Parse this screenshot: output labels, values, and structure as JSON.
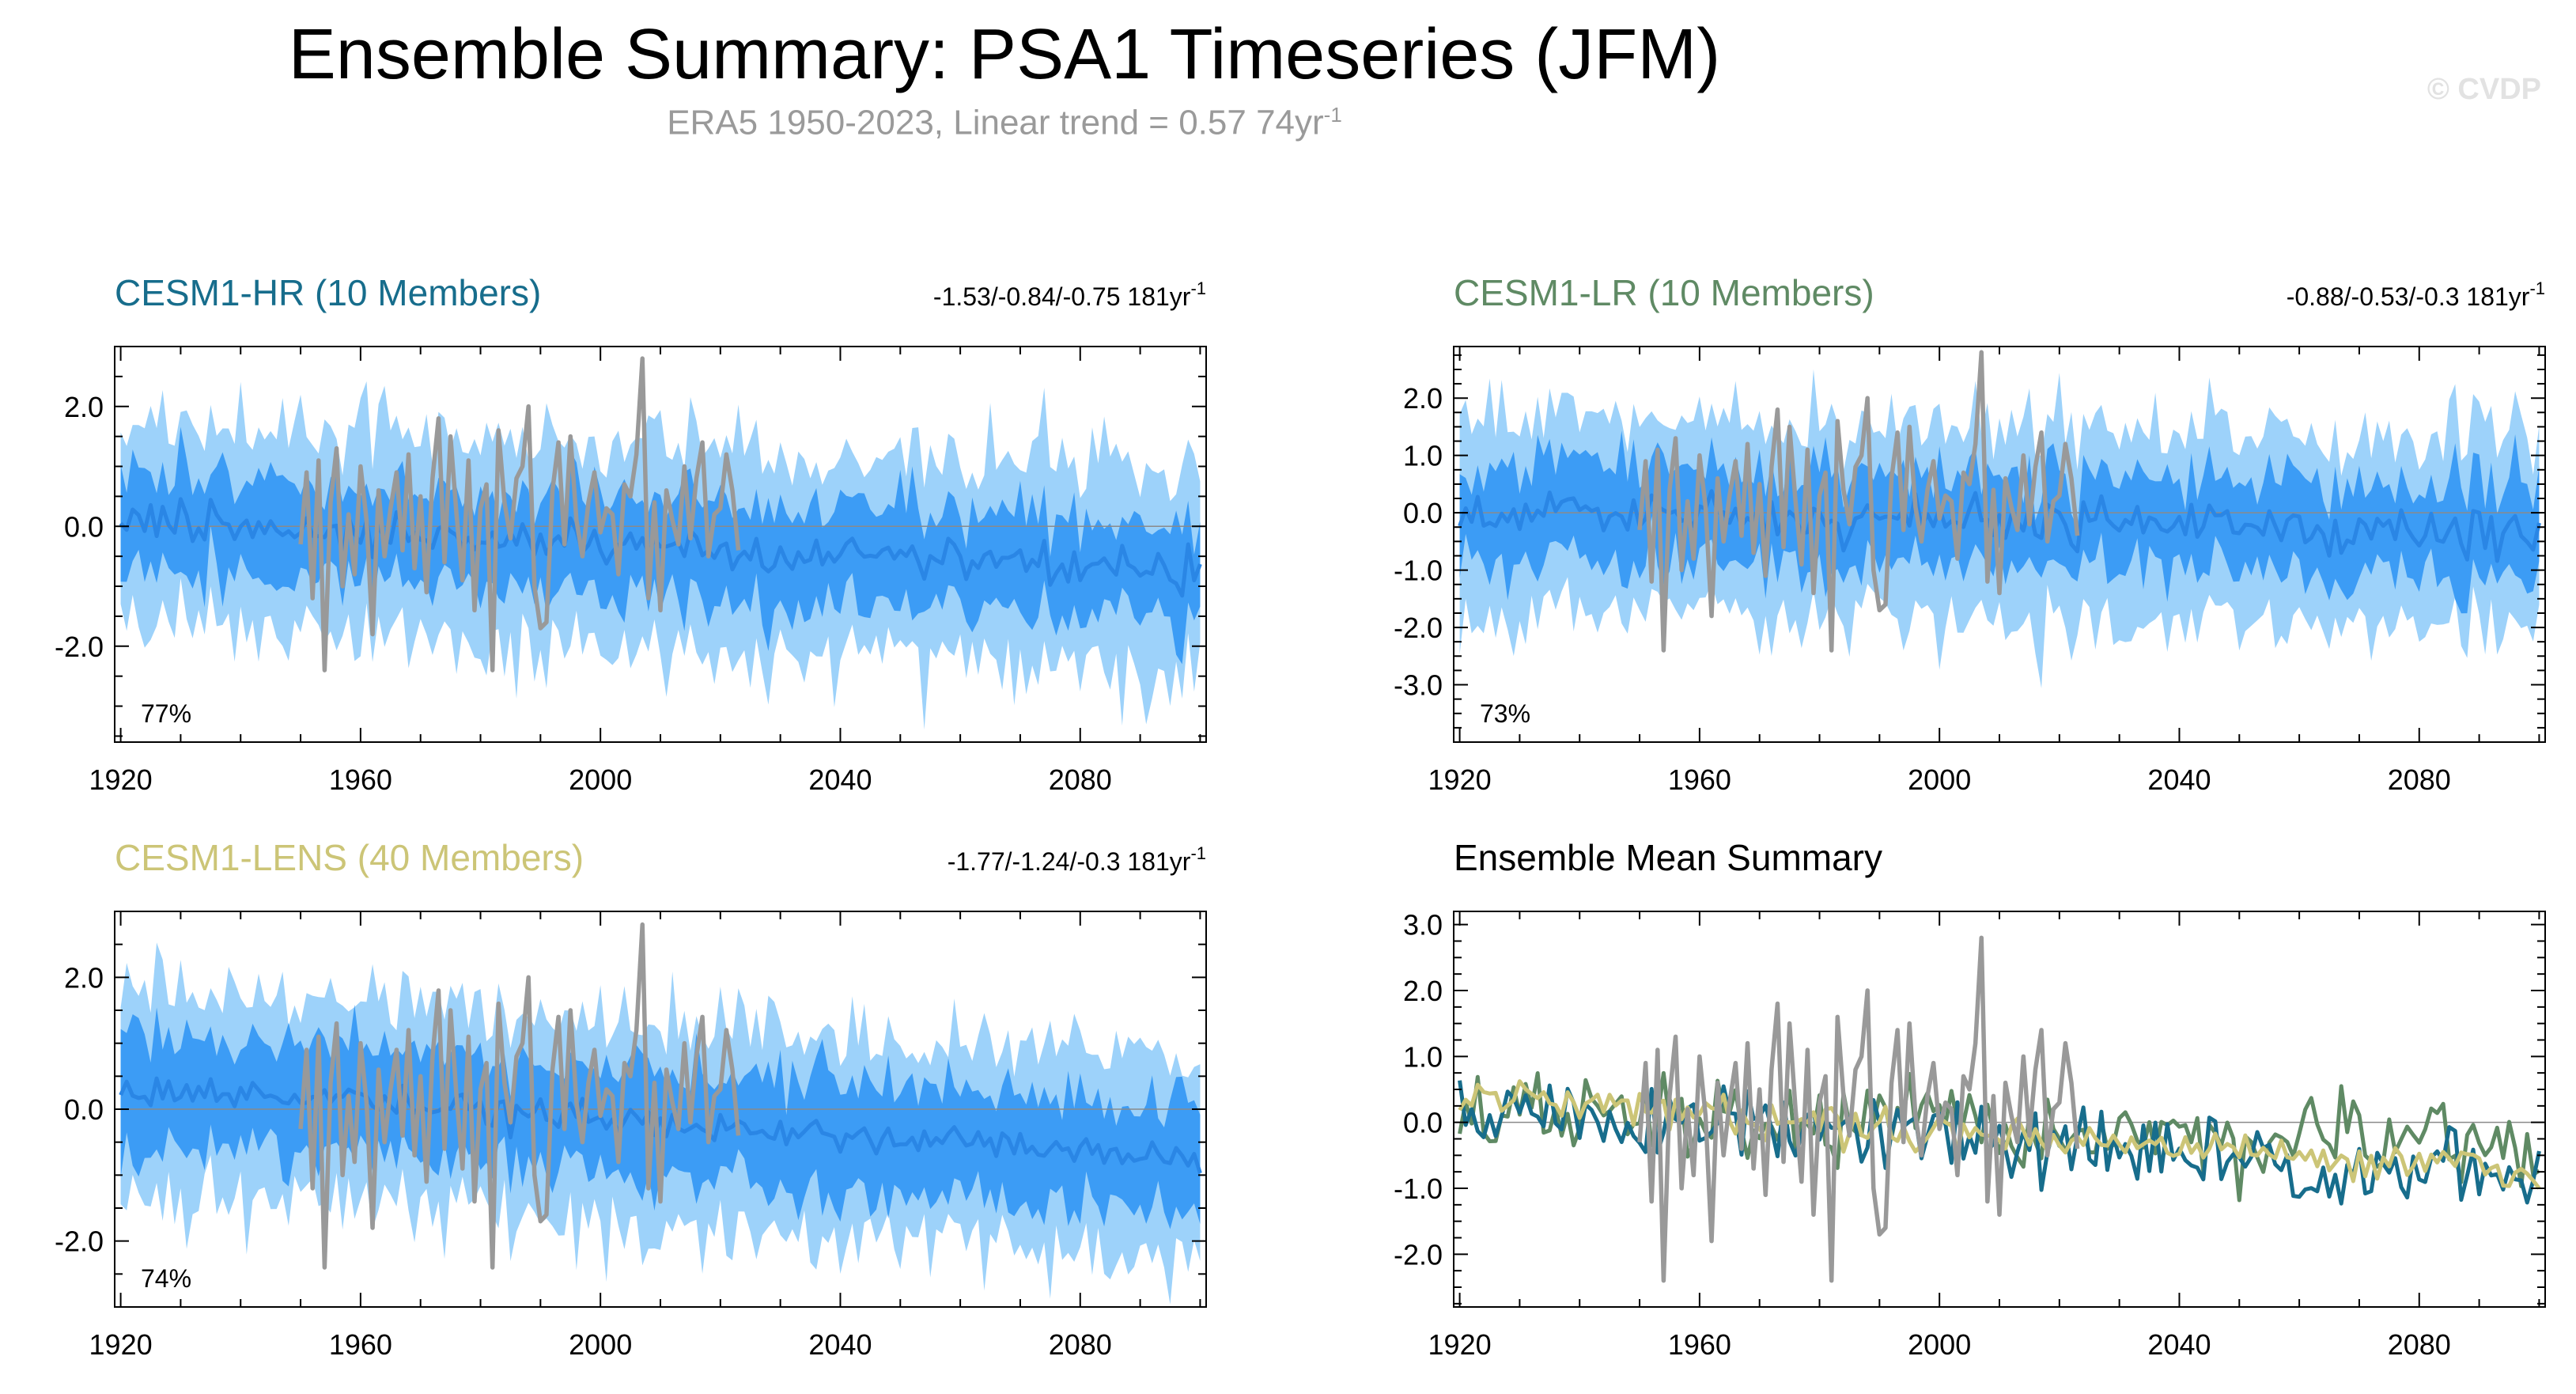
{
  "title": "Ensemble Summary: PSA1 Timeseries (JFM)",
  "subtitle": {
    "text": "ERA5 1950-2023, Linear trend = 0.57 74yr",
    "sup": "-1"
  },
  "watermark": "© CVDP",
  "colors": {
    "hr": "#176d8c",
    "lr": "#5f8a64",
    "lens": "#ccc577",
    "obs": "#999999",
    "band_outer": "#9dd2fa",
    "band_inner": "#3c9cf5",
    "ens_mean": "#2a86e5"
  },
  "chart_data": [
    {
      "id": "hr",
      "type": "line",
      "title": "CESM1-HR (10 Members)",
      "trend": "-1.53/-0.84/-0.75 181yr",
      "trend_sup": "-1",
      "percent": "77%",
      "xlim": [
        1919,
        2101
      ],
      "ylim": [
        -3.6,
        3.0
      ],
      "xticks": [
        1920,
        1960,
        2000,
        2040,
        2080
      ],
      "yticks": [
        2.0,
        0.0,
        -2.0
      ],
      "ytick_labels": [
        "2.0",
        "0.0",
        "-2.0"
      ],
      "y_minor": 0.5,
      "mean_start": 0.1,
      "mean_end": -0.8,
      "inner_half": 0.6,
      "outer_half": 1.3,
      "member_noise": 0.5,
      "seed": 11
    },
    {
      "id": "lr",
      "type": "line",
      "title": "CESM1-LR (10 Members)",
      "trend": "-0.88/-0.53/-0.3 181yr",
      "trend_sup": "-1",
      "percent": "73%",
      "xlim": [
        1919,
        2101
      ],
      "ylim": [
        -4.0,
        2.9
      ],
      "xticks": [
        1920,
        1960,
        2000,
        2040,
        2080
      ],
      "yticks": [
        2.0,
        1.0,
        0.0,
        -1.0,
        -2.0,
        -3.0
      ],
      "ytick_labels": [
        "2.0",
        "1.0",
        "0.0",
        "-1.0",
        "-2.0",
        "-3.0"
      ],
      "y_minor": 0.25,
      "mean_start": 0.0,
      "mean_end": -0.35,
      "inner_half": 0.6,
      "outer_half": 1.3,
      "member_noise": 0.6,
      "seed": 23
    },
    {
      "id": "lens",
      "type": "line",
      "title": "CESM1-LENS (40 Members)",
      "trend": "-1.77/-1.24/-0.3 181yr",
      "trend_sup": "-1",
      "percent": "74%",
      "xlim": [
        1919,
        2101
      ],
      "ylim": [
        -3.0,
        3.0
      ],
      "xticks": [
        1920,
        1960,
        2000,
        2040,
        2080
      ],
      "yticks": [
        2.0,
        0.0,
        -2.0
      ],
      "ytick_labels": [
        "2.0",
        "0.0",
        "-2.0"
      ],
      "y_minor": 0.5,
      "mean_start": 0.35,
      "mean_end": -0.75,
      "inner_half": 0.6,
      "outer_half": 1.15,
      "member_noise": 0.35,
      "seed": 37
    },
    {
      "id": "summary",
      "type": "line",
      "title": "Ensemble Mean Summary",
      "xlim": [
        1919,
        2101
      ],
      "ylim": [
        -2.8,
        3.2
      ],
      "xticks": [
        1920,
        1960,
        2000,
        2040,
        2080
      ],
      "yticks": [
        3.0,
        2.0,
        1.0,
        0.0,
        -1.0,
        -2.0
      ],
      "ytick_labels": [
        "3.0",
        "2.0",
        "1.0",
        "0.0",
        "-1.0",
        "-2.0"
      ],
      "y_minor": 0.25,
      "series": [
        {
          "name": "CESM1-HR",
          "start": 0.2,
          "end": -0.85,
          "noise": 0.32,
          "seed": 51
        },
        {
          "name": "CESM1-LR",
          "start": 0.15,
          "end": -0.4,
          "noise": 0.32,
          "seed": 67
        },
        {
          "name": "CESM1-LENS",
          "start": 0.4,
          "end": -0.75,
          "noise": 0.14,
          "seed": 79
        }
      ]
    }
  ],
  "observations": {
    "name": "ERA5",
    "years": [
      1950,
      2023
    ],
    "values": [
      -0.3,
      0.9,
      -1.2,
      1.1,
      -2.4,
      0.4,
      1.3,
      -1.0,
      0.2,
      -0.8,
      1.0,
      0.1,
      -1.8,
      0.6,
      -0.5,
      0.3,
      0.9,
      -0.4,
      1.2,
      -0.7,
      0.5,
      -1.1,
      0.8,
      1.8,
      -0.6,
      1.5,
      0.2,
      -0.9,
      1.1,
      -1.4,
      0.3,
      0.7,
      -2.4,
      1.6,
      0.4,
      -0.2,
      0.8,
      1.0,
      2.0,
      -1.0,
      -1.7,
      -1.6,
      0.6,
      1.4,
      -0.3,
      1.5,
      0.1,
      -0.5,
      0.4,
      0.9,
      -0.1,
      0.3,
      0.2,
      -0.8,
      0.7,
      0.5,
      1.2,
      2.8,
      -1.2,
      0.4,
      -1.4,
      0.6,
      0.1,
      -0.3,
      1.0,
      -0.2,
      0.8,
      1.4,
      -0.5,
      0.2,
      0.3,
      1.2,
      0.6,
      -0.4
    ]
  }
}
